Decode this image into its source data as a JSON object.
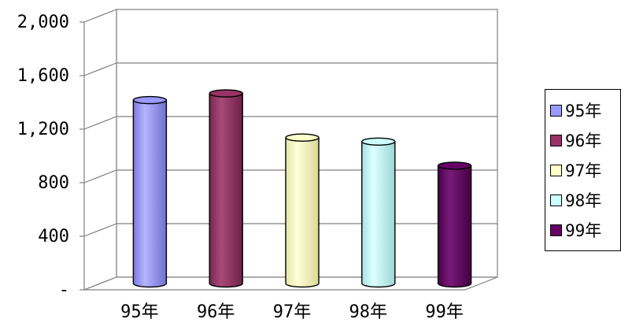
{
  "chart_data": {
    "type": "bar",
    "style": "3d-cylinder",
    "categories": [
      "95年",
      "96年",
      "97年",
      "98年",
      "99年"
    ],
    "values": [
      1370,
      1420,
      1090,
      1060,
      880
    ],
    "colors": [
      "#9999FF",
      "#993366",
      "#FFFFCC",
      "#CCFFFF",
      "#660066"
    ],
    "ylim": [
      0,
      2000
    ],
    "yticks": [
      0,
      400,
      800,
      1200,
      1600,
      2000
    ],
    "ytick_labels": [
      "-",
      "400",
      "800",
      "1,200",
      "1,600",
      "2,000"
    ],
    "grid": true,
    "legend": {
      "position": "right",
      "entries": [
        "95年",
        "96年",
        "97年",
        "98年",
        "99年"
      ]
    }
  }
}
